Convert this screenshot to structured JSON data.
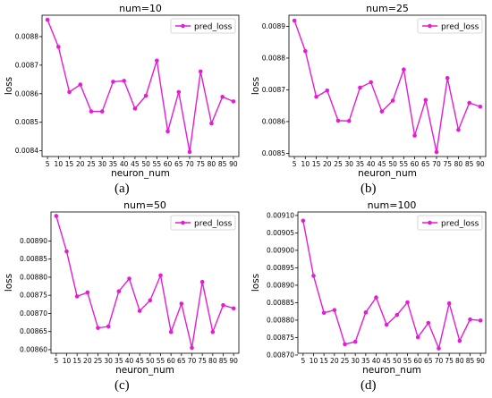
{
  "colors": {
    "series": "#e41cd6",
    "axis": "#000000"
  },
  "captions": [
    "(a)",
    "(b)",
    "(c)",
    "(d)"
  ],
  "chart_data": [
    {
      "type": "line",
      "title": "num=10",
      "xlabel": "neuron_num",
      "ylabel": "loss",
      "x": [
        5,
        10,
        15,
        20,
        25,
        30,
        35,
        40,
        45,
        50,
        55,
        60,
        65,
        70,
        75,
        80,
        85,
        90
      ],
      "series": [
        {
          "name": "pred_loss",
          "values": [
            0.008859,
            0.008764,
            0.008606,
            0.008632,
            0.008538,
            0.008538,
            0.008642,
            0.008645,
            0.008548,
            0.008593,
            0.008716,
            0.008468,
            0.008606,
            0.008396,
            0.008678,
            0.008496,
            0.008589,
            0.008573
          ]
        }
      ],
      "yticks": [
        0.0084,
        0.0085,
        0.0086,
        0.0087,
        0.0088
      ],
      "ytick_labels": [
        "0.0084",
        "0.0085",
        "0.0086",
        "0.0087",
        "0.0088"
      ],
      "ylim": [
        0.00838,
        0.008875
      ],
      "legend": "top-right",
      "grid": false
    },
    {
      "type": "line",
      "title": "num=25",
      "xlabel": "neuron_num",
      "ylabel": "loss",
      "x": [
        5,
        10,
        15,
        20,
        25,
        30,
        35,
        40,
        45,
        50,
        55,
        60,
        65,
        70,
        75,
        80,
        85,
        90
      ],
      "series": [
        {
          "name": "pred_loss",
          "values": [
            0.008918,
            0.008822,
            0.008678,
            0.008698,
            0.008603,
            0.008602,
            0.008707,
            0.008724,
            0.008632,
            0.008666,
            0.008764,
            0.008556,
            0.008668,
            0.008504,
            0.008737,
            0.008574,
            0.008659,
            0.008647
          ]
        }
      ],
      "yticks": [
        0.0085,
        0.0086,
        0.0087,
        0.0088,
        0.0089
      ],
      "ytick_labels": [
        "0.0085",
        "0.0086",
        "0.0087",
        "0.0088",
        "0.0089"
      ],
      "ylim": [
        0.00849,
        0.008935
      ],
      "legend": "top-right",
      "grid": false
    },
    {
      "type": "line",
      "title": "num=50",
      "xlabel": "neuron_num",
      "ylabel": "loss",
      "x": [
        5,
        10,
        15,
        20,
        25,
        30,
        35,
        40,
        45,
        50,
        55,
        60,
        65,
        70,
        75,
        80,
        85,
        90
      ],
      "series": [
        {
          "name": "pred_loss",
          "values": [
            0.008969,
            0.008871,
            0.008747,
            0.008758,
            0.00866,
            0.008664,
            0.008761,
            0.008796,
            0.008707,
            0.008736,
            0.008805,
            0.008649,
            0.008727,
            0.008605,
            0.008787,
            0.008649,
            0.008723,
            0.008714
          ]
        }
      ],
      "yticks": [
        0.0086,
        0.00865,
        0.0087,
        0.00875,
        0.0088,
        0.00885,
        0.0089
      ],
      "ytick_labels": [
        "0.00860",
        "0.00865",
        "0.00870",
        "0.00875",
        "0.00880",
        "0.00885",
        "0.00890"
      ],
      "ylim": [
        0.00859,
        0.00898
      ],
      "legend": "top-right",
      "grid": false
    },
    {
      "type": "line",
      "title": "num=100",
      "xlabel": "neuron_num",
      "ylabel": "loss",
      "x": [
        5,
        10,
        15,
        20,
        25,
        30,
        35,
        40,
        45,
        50,
        55,
        60,
        65,
        70,
        75,
        80,
        85,
        90
      ],
      "series": [
        {
          "name": "pred_loss",
          "values": [
            0.009085,
            0.008927,
            0.008821,
            0.008829,
            0.008731,
            0.008738,
            0.008822,
            0.008865,
            0.008787,
            0.008815,
            0.008851,
            0.008751,
            0.008792,
            0.008719,
            0.008848,
            0.008741,
            0.008802,
            0.008799
          ]
        }
      ],
      "yticks": [
        0.0087,
        0.00875,
        0.0088,
        0.00885,
        0.0089,
        0.00895,
        0.009,
        0.00905,
        0.0091
      ],
      "ytick_labels": [
        "0.00870",
        "0.00875",
        "0.00880",
        "0.00885",
        "0.00890",
        "0.00895",
        "0.00900",
        "0.00905",
        "0.00910"
      ],
      "ylim": [
        0.008705,
        0.00911
      ],
      "legend": "top-right",
      "grid": false
    }
  ]
}
